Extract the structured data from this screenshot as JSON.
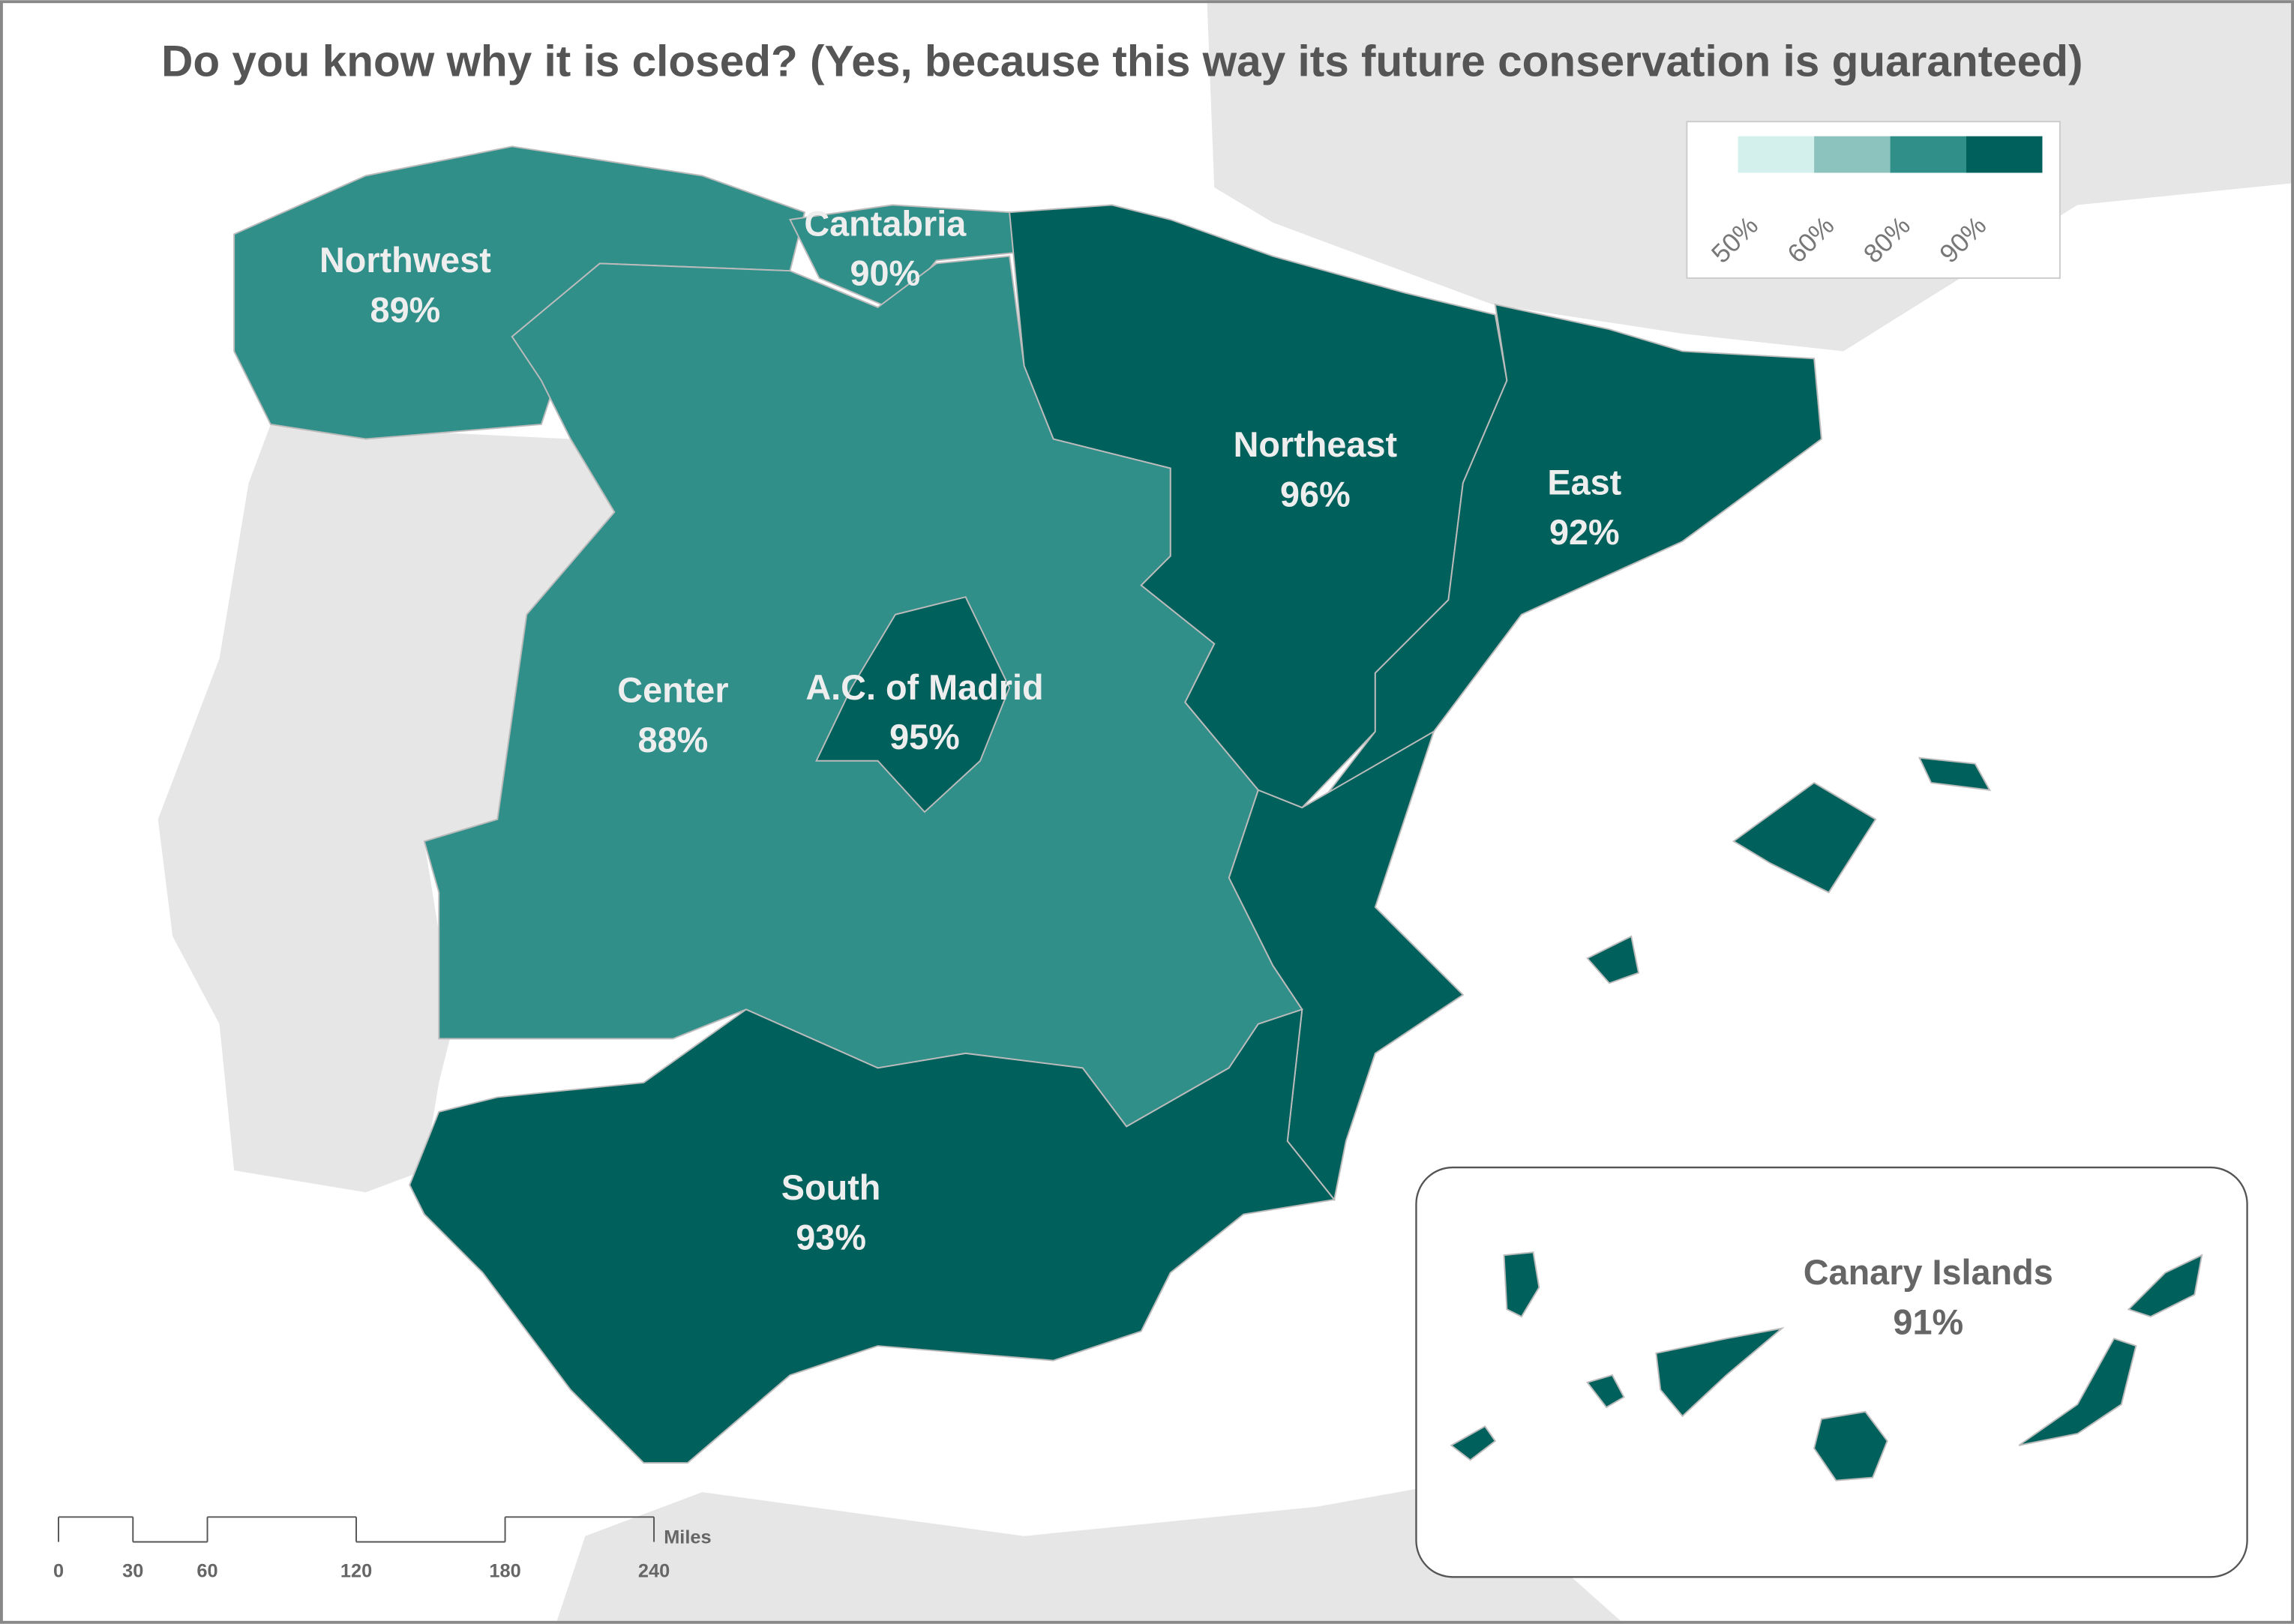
{
  "title": "Do you know why it is closed? (Yes, because this way its future conservation is guaranteed)",
  "legend": {
    "ticks": [
      {
        "value": 50,
        "label": "50%"
      },
      {
        "value": 60,
        "label": "60%"
      },
      {
        "value": 80,
        "label": "80%"
      },
      {
        "value": 90,
        "label": "90%"
      }
    ],
    "colors": [
      "#d3f0ed",
      "#8cc3be",
      "#318f8a",
      "#00615c"
    ]
  },
  "regions": [
    {
      "name": "Northwest",
      "value": 89,
      "value_label": "89%",
      "color": "#318f8a"
    },
    {
      "name": "Cantabria",
      "value": 90,
      "value_label": "90%",
      "color": "#318f8a"
    },
    {
      "name": "Northeast",
      "value": 96,
      "value_label": "96%",
      "color": "#00615c"
    },
    {
      "name": "East",
      "value": 92,
      "value_label": "92%",
      "color": "#00615c"
    },
    {
      "name": "Center",
      "value": 88,
      "value_label": "88%",
      "color": "#318f8a"
    },
    {
      "name": "A.C. of Madrid",
      "value": 95,
      "value_label": "95%",
      "color": "#00615c"
    },
    {
      "name": "South",
      "value": 93,
      "value_label": "93%",
      "color": "#00615c"
    },
    {
      "name": "Canary Islands",
      "value": 91,
      "value_label": "91%",
      "color": "#00615c"
    }
  ],
  "scale": {
    "unit": "Miles",
    "ticks": [
      0,
      30,
      60,
      120,
      180,
      240
    ]
  }
}
